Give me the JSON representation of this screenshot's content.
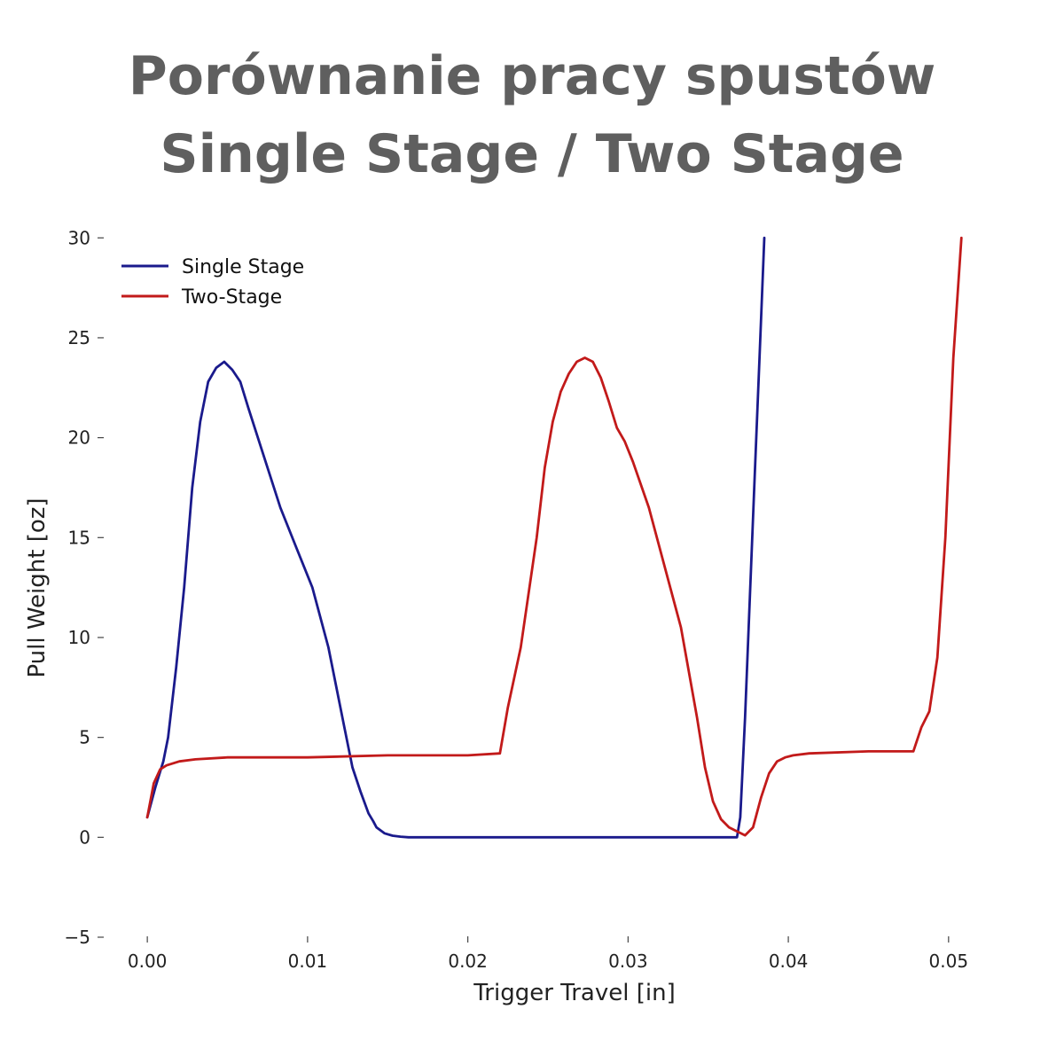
{
  "chart_data": {
    "type": "line",
    "title": [
      "Porównanie pracy spustów",
      "Single Stage / Two Stage"
    ],
    "xlabel": "Trigger Travel [in]",
    "ylabel": "Pull Weight [oz]",
    "xlim": [
      -0.002,
      0.0525
    ],
    "ylim": [
      -5,
      30.5
    ],
    "xticks": [
      0.0,
      0.01,
      0.02,
      0.03,
      0.04,
      0.05
    ],
    "xtick_labels": [
      "0.00",
      "0.01",
      "0.02",
      "0.03",
      "0.04",
      "0.05"
    ],
    "yticks": [
      -5,
      0,
      5,
      10,
      15,
      20,
      25,
      30
    ],
    "ytick_labels": [
      "−5",
      "0",
      "5",
      "10",
      "15",
      "20",
      "25",
      "30"
    ],
    "grid": false,
    "legend_position": "top-left",
    "series": [
      {
        "name": "Single Stage",
        "color": "#1a1a8c",
        "x": [
          0.0,
          0.0005,
          0.001,
          0.0013,
          0.0018,
          0.0023,
          0.0028,
          0.0033,
          0.0038,
          0.0043,
          0.0048,
          0.0053,
          0.0058,
          0.0063,
          0.0073,
          0.0083,
          0.0093,
          0.0103,
          0.0113,
          0.0123,
          0.0128,
          0.0133,
          0.0138,
          0.0141,
          0.0143,
          0.0148,
          0.0153,
          0.0158,
          0.0163,
          0.0173,
          0.02,
          0.025,
          0.03,
          0.035,
          0.0368,
          0.037,
          0.0373,
          0.0376,
          0.0379,
          0.0382,
          0.0385
        ],
        "y": [
          1.0,
          2.5,
          3.8,
          5.0,
          8.5,
          12.5,
          17.5,
          20.8,
          22.8,
          23.5,
          23.8,
          23.4,
          22.8,
          21.5,
          19.0,
          16.5,
          14.5,
          12.5,
          9.5,
          5.5,
          3.5,
          2.3,
          1.2,
          0.8,
          0.5,
          0.2,
          0.08,
          0.03,
          0.0,
          0.0,
          0.0,
          0.0,
          0.0,
          0.0,
          0.0,
          1.0,
          6.0,
          12.0,
          18.0,
          24.0,
          30.0
        ]
      },
      {
        "name": "Two-Stage",
        "color": "#c21a1a",
        "x": [
          0.0,
          0.0004,
          0.0008,
          0.0012,
          0.002,
          0.003,
          0.005,
          0.01,
          0.015,
          0.02,
          0.022,
          0.0225,
          0.0233,
          0.0243,
          0.0248,
          0.0253,
          0.0258,
          0.0263,
          0.0268,
          0.0273,
          0.0278,
          0.0283,
          0.0288,
          0.0293,
          0.0298,
          0.0303,
          0.0313,
          0.0323,
          0.0333,
          0.0343,
          0.0348,
          0.0353,
          0.0358,
          0.0363,
          0.0368,
          0.0373,
          0.0378,
          0.0383,
          0.0388,
          0.0393,
          0.0398,
          0.0403,
          0.0413,
          0.045,
          0.0478,
          0.0483,
          0.0488,
          0.0493,
          0.0498,
          0.0503,
          0.0508
        ],
        "y": [
          1.0,
          2.7,
          3.4,
          3.6,
          3.8,
          3.9,
          4.0,
          4.0,
          4.1,
          4.1,
          4.2,
          6.5,
          9.5,
          15.0,
          18.5,
          20.8,
          22.3,
          23.2,
          23.8,
          24.0,
          23.8,
          23.0,
          21.8,
          20.5,
          19.8,
          18.8,
          16.5,
          13.5,
          10.5,
          6.0,
          3.5,
          1.8,
          0.9,
          0.5,
          0.3,
          0.1,
          0.5,
          2.0,
          3.2,
          3.8,
          4.0,
          4.1,
          4.2,
          4.3,
          4.3,
          5.5,
          6.3,
          9.0,
          15.0,
          24.0,
          30.0
        ]
      }
    ]
  }
}
